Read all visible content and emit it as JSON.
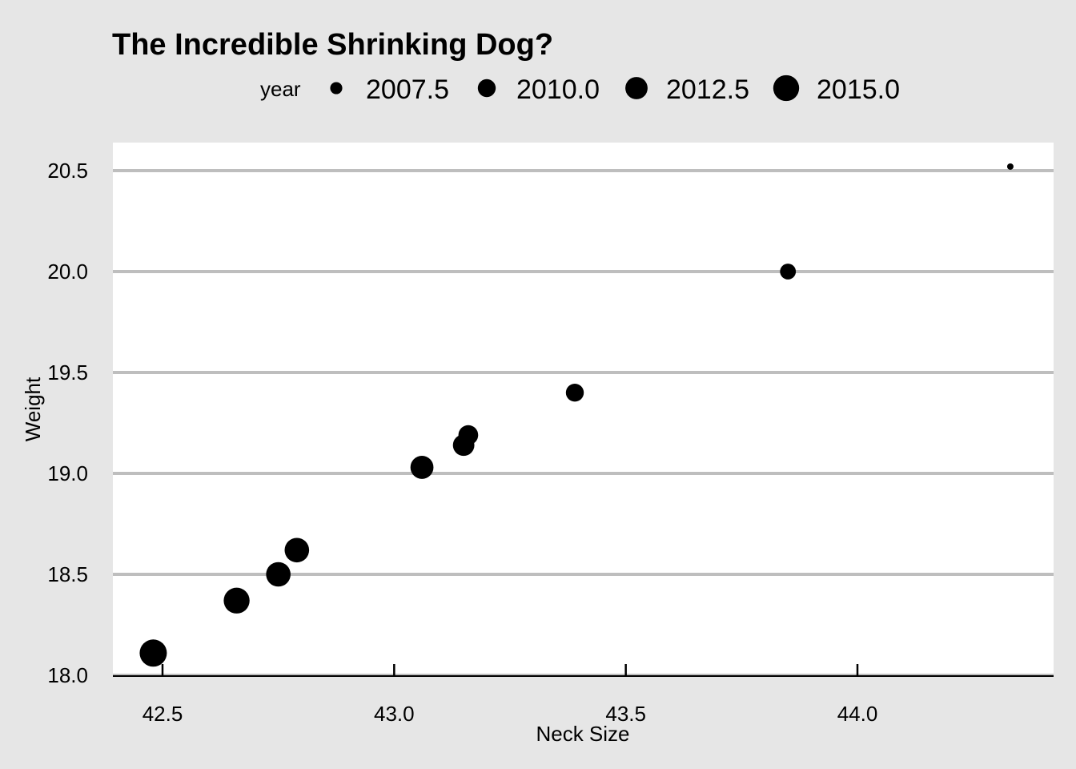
{
  "chart_data": {
    "type": "scatter",
    "title": "The Incredible Shrinking Dog?",
    "xlabel": "Neck Size",
    "ylabel": "Weight",
    "xlim": [
      42.41,
      44.43
    ],
    "ylim": [
      18.0,
      20.65
    ],
    "x_ticks": [
      42.5,
      43.0,
      43.5,
      44.0
    ],
    "x_tick_labels": [
      "42.5",
      "43.0",
      "43.5",
      "44.0"
    ],
    "y_ticks": [
      18.0,
      18.5,
      19.0,
      19.5,
      20.0,
      20.5
    ],
    "y_tick_labels": [
      "18.0",
      "18.5",
      "19.0",
      "19.5",
      "20.0",
      "20.5"
    ],
    "grid": "horizontal",
    "legend": {
      "title": "year",
      "position": "top",
      "entries": [
        {
          "label": "2007.5",
          "value": 2007.5
        },
        {
          "label": "2010.0",
          "value": 2010.0
        },
        {
          "label": "2012.5",
          "value": 2012.5
        },
        {
          "label": "2015.0",
          "value": 2015.0
        }
      ]
    },
    "size_variable": "year",
    "size_range": [
      2006,
      2016
    ],
    "points": [
      {
        "x": 44.33,
        "y": 20.52,
        "year": 2006
      },
      {
        "x": 43.85,
        "y": 20.0,
        "year": 2009
      },
      {
        "x": 43.39,
        "y": 19.4,
        "year": 2010
      },
      {
        "x": 43.16,
        "y": 19.19,
        "year": 2011
      },
      {
        "x": 43.15,
        "y": 19.14,
        "year": 2012
      },
      {
        "x": 43.06,
        "y": 19.03,
        "year": 2013
      },
      {
        "x": 42.79,
        "y": 18.62,
        "year": 2014
      },
      {
        "x": 42.75,
        "y": 18.5,
        "year": 2014
      },
      {
        "x": 42.66,
        "y": 18.37,
        "year": 2015
      },
      {
        "x": 42.48,
        "y": 18.11,
        "year": 2016
      }
    ],
    "colors": {
      "background": "#e6e6e6",
      "panel": "#ffffff",
      "grid": "#bebebe",
      "point": "#000000"
    }
  }
}
